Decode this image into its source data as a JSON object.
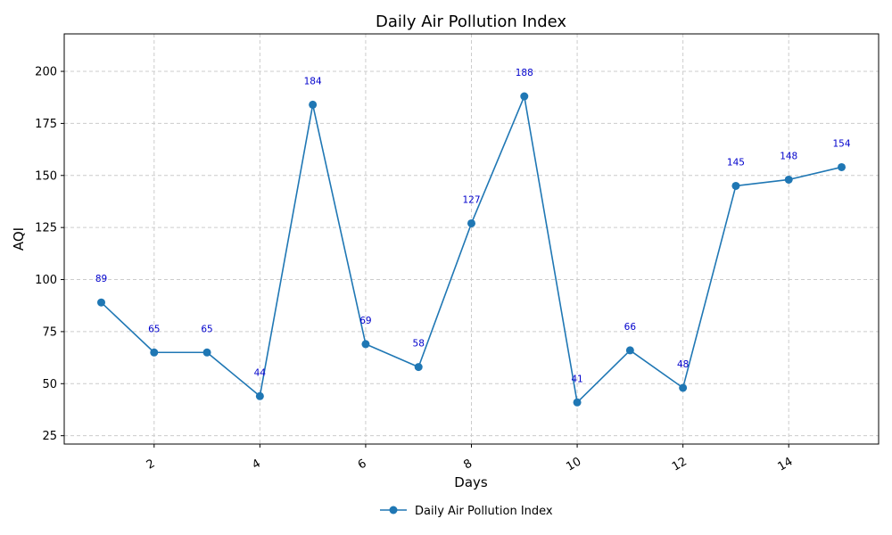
{
  "chart_data": {
    "type": "line",
    "title": "Daily Air Pollution Index",
    "xlabel": "Days",
    "ylabel": "AQI",
    "xlim": [
      0.3,
      15.7
    ],
    "ylim": [
      21,
      218
    ],
    "x_ticks": [
      2,
      4,
      6,
      8,
      10,
      12,
      14
    ],
    "y_ticks": [
      25,
      50,
      75,
      100,
      125,
      150,
      175,
      200
    ],
    "grid": true,
    "legend_position": "bottom-center",
    "series": [
      {
        "name": "Daily Air Pollution Index",
        "color": "#1f77b4",
        "label_color": "#0000cc",
        "x": [
          1,
          2,
          3,
          4,
          5,
          6,
          7,
          8,
          9,
          10,
          11,
          12,
          13,
          14,
          15
        ],
        "values": [
          89,
          65,
          65,
          44,
          184,
          69,
          58,
          127,
          188,
          41,
          66,
          48,
          145,
          148,
          154
        ]
      }
    ]
  }
}
